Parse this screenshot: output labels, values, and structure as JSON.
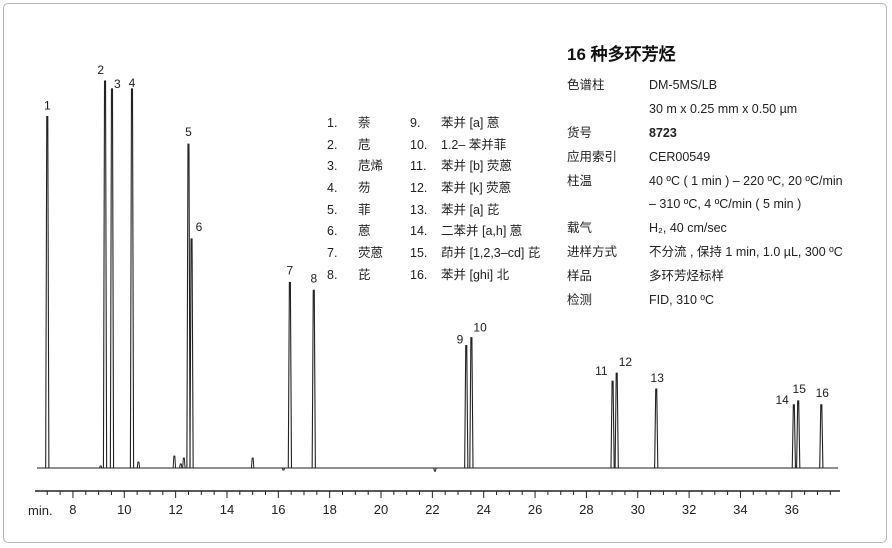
{
  "info": {
    "title": "16 种多环芳烃",
    "rows": [
      {
        "label": "色谱柱",
        "value": "DM-5MS/LB",
        "bold": false
      },
      {
        "label": "",
        "value": "30 m x 0.25 mm x 0.50 µm",
        "bold": false
      },
      {
        "label": "货号",
        "value": "8723",
        "bold": true
      },
      {
        "label": "应用索引",
        "value": "CER00549",
        "bold": false
      },
      {
        "label": "柱温",
        "value": "40 ºC ( 1 min ) – 220 ºC, 20 ºC/min",
        "bold": false
      },
      {
        "label": "",
        "value": "– 310 ºC, 4 ºC/min ( 5 min )",
        "bold": false
      },
      {
        "label": "载气",
        "value": "H₂, 40 cm/sec",
        "bold": false
      },
      {
        "label": "进样方式",
        "value": "不分流 , 保持 1 min, 1.0 µL, 300 ºC",
        "bold": false
      },
      {
        "label": "样品",
        "value": "多环芳烃标样",
        "bold": false
      },
      {
        "label": "检测",
        "value": "FID, 310 ºC",
        "bold": false
      }
    ]
  },
  "compounds": [
    {
      "num": "1.",
      "name": "萘"
    },
    {
      "num": "2.",
      "name": "苊"
    },
    {
      "num": "3.",
      "name": "苊烯"
    },
    {
      "num": "4.",
      "name": "芴"
    },
    {
      "num": "5.",
      "name": "菲"
    },
    {
      "num": "6.",
      "name": "蒽"
    },
    {
      "num": "7.",
      "name": "荧蒽"
    },
    {
      "num": "8.",
      "name": "芘"
    },
    {
      "num": "9.",
      "name": "苯并 [a] 蒽"
    },
    {
      "num": "10.",
      "name": "1.2– 苯并菲"
    },
    {
      "num": "11.",
      "name": "苯并 [b] 荧蒽"
    },
    {
      "num": "12.",
      "name": "苯并 [k] 荧蒽"
    },
    {
      "num": "13.",
      "name": "苯并 [a] 芘"
    },
    {
      "num": "14.",
      "name": "二苯并 [a,h] 蒽"
    },
    {
      "num": "15.",
      "name": "茚并 [1,2,3–cd] 芘"
    },
    {
      "num": "16.",
      "name": "苯并 [ghi] 北"
    }
  ],
  "chart_data": {
    "type": "line",
    "title": "16 种多环芳烃",
    "xlabel": "min.",
    "ylabel": "",
    "xlim": [
      6.6,
      37.8
    ],
    "ylim": [
      0,
      100
    ],
    "major_ticks": [
      8,
      10,
      12,
      14,
      16,
      18,
      20,
      22,
      24,
      26,
      28,
      30,
      32,
      34,
      36
    ],
    "minor_tick_step": 0.5,
    "grid": false,
    "legend": "none",
    "baseline": 2,
    "peaks": [
      {
        "label": "1",
        "rt": 7.0,
        "height": 91
      },
      {
        "label": "2",
        "rt": 9.25,
        "height": 100
      },
      {
        "label": "3",
        "rt": 9.52,
        "height": 98
      },
      {
        "label": "4",
        "rt": 10.3,
        "height": 98
      },
      {
        "label": "5",
        "rt": 12.5,
        "height": 84
      },
      {
        "label": "6",
        "rt": 12.62,
        "height": 60
      },
      {
        "label": "7",
        "rt": 16.45,
        "height": 49
      },
      {
        "label": "8",
        "rt": 17.38,
        "height": 47
      },
      {
        "label": "9",
        "rt": 23.32,
        "height": 33
      },
      {
        "label": "10",
        "rt": 23.52,
        "height": 35
      },
      {
        "label": "11",
        "rt": 29.02,
        "height": 24
      },
      {
        "label": "12",
        "rt": 29.18,
        "height": 26
      },
      {
        "label": "13",
        "rt": 30.72,
        "height": 22
      },
      {
        "label": "14",
        "rt": 36.08,
        "height": 18
      },
      {
        "label": "15",
        "rt": 36.25,
        "height": 19
      },
      {
        "label": "16",
        "rt": 37.15,
        "height": 18
      }
    ],
    "minor_peaks": [
      {
        "rt": 9.08,
        "height": 2.5
      },
      {
        "rt": 10.55,
        "height": 3.5
      },
      {
        "rt": 11.95,
        "height": 5
      },
      {
        "rt": 12.2,
        "height": 3
      },
      {
        "rt": 12.32,
        "height": 4.5
      },
      {
        "rt": 15.0,
        "height": 4.5
      },
      {
        "rt": 16.2,
        "height": 1.5
      },
      {
        "rt": 22.1,
        "height": 1.2
      }
    ]
  }
}
